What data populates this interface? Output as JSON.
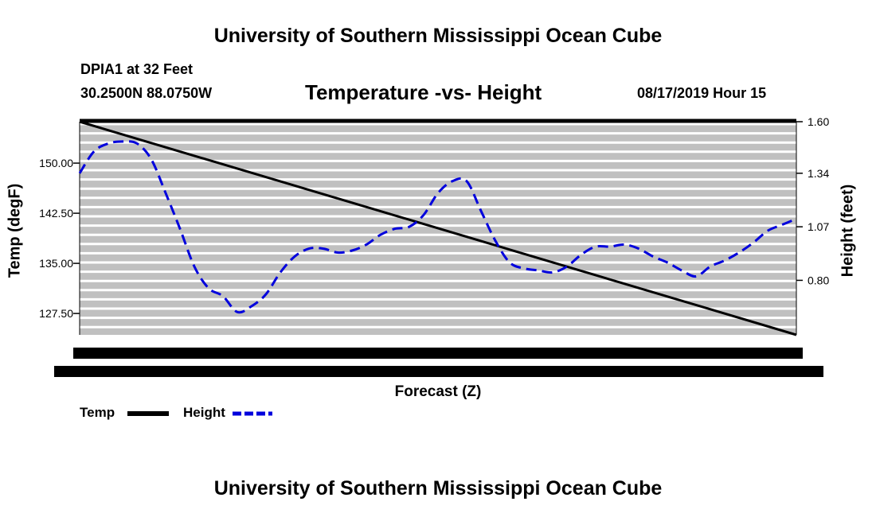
{
  "header": {
    "title": "University of Southern Mississippi Ocean Cube",
    "station": "DPIA1 at 32 Feet",
    "coords": "30.2500N 88.0750W",
    "subtitle": "Temperature -vs- Height",
    "datetime": "08/17/2019 Hour 15"
  },
  "footer": {
    "title": "University of Southern Mississippi Ocean Cube"
  },
  "chart_data": {
    "type": "line",
    "xlabel": "Forecast (Z)",
    "ylabel_left": "Temp (degF)",
    "ylabel_right": "Height (feet)",
    "left_axis": {
      "ylim": [
        124.3,
        156.2
      ],
      "ticks": [
        "150.00",
        "142.50",
        "135.00",
        "127.50"
      ],
      "tick_values": [
        150,
        142.5,
        135,
        127.5
      ]
    },
    "right_axis": {
      "ylim": [
        0.525,
        1.6
      ],
      "ticks": [
        "1.60",
        "1.34",
        "1.07",
        "0.80"
      ],
      "tick_values": [
        1.6,
        1.34,
        1.07,
        0.8
      ]
    },
    "x": [
      0,
      2,
      4,
      6,
      8,
      10,
      12,
      14,
      16,
      18,
      20,
      22,
      24,
      26,
      28,
      30,
      32,
      34,
      36,
      38,
      40,
      42,
      44,
      46,
      48,
      50,
      52,
      54,
      56,
      58,
      60,
      62,
      64,
      66,
      68,
      70,
      72,
      74,
      76,
      78,
      80,
      82,
      84,
      86,
      88,
      90,
      92,
      94,
      96,
      98,
      100
    ],
    "grid": true,
    "series": [
      {
        "name": "Temp",
        "axis": "left",
        "color": "#000000",
        "style": "solid",
        "x": [
          0,
          100
        ],
        "values": [
          156.2,
          124.3
        ]
      },
      {
        "name": "Height",
        "axis": "right",
        "color": "#0000dd",
        "style": "dashed",
        "values": [
          1.34,
          1.45,
          1.49,
          1.5,
          1.49,
          1.41,
          1.24,
          1.06,
          0.87,
          0.76,
          0.72,
          0.64,
          0.67,
          0.73,
          0.84,
          0.92,
          0.96,
          0.96,
          0.94,
          0.95,
          0.98,
          1.03,
          1.06,
          1.07,
          1.13,
          1.24,
          1.3,
          1.3,
          1.15,
          1.0,
          0.89,
          0.86,
          0.85,
          0.84,
          0.87,
          0.93,
          0.97,
          0.97,
          0.98,
          0.96,
          0.92,
          0.89,
          0.85,
          0.82,
          0.87,
          0.9,
          0.94,
          0.99,
          1.05,
          1.08,
          1.11
        ]
      }
    ],
    "legend": "bottom-left"
  }
}
